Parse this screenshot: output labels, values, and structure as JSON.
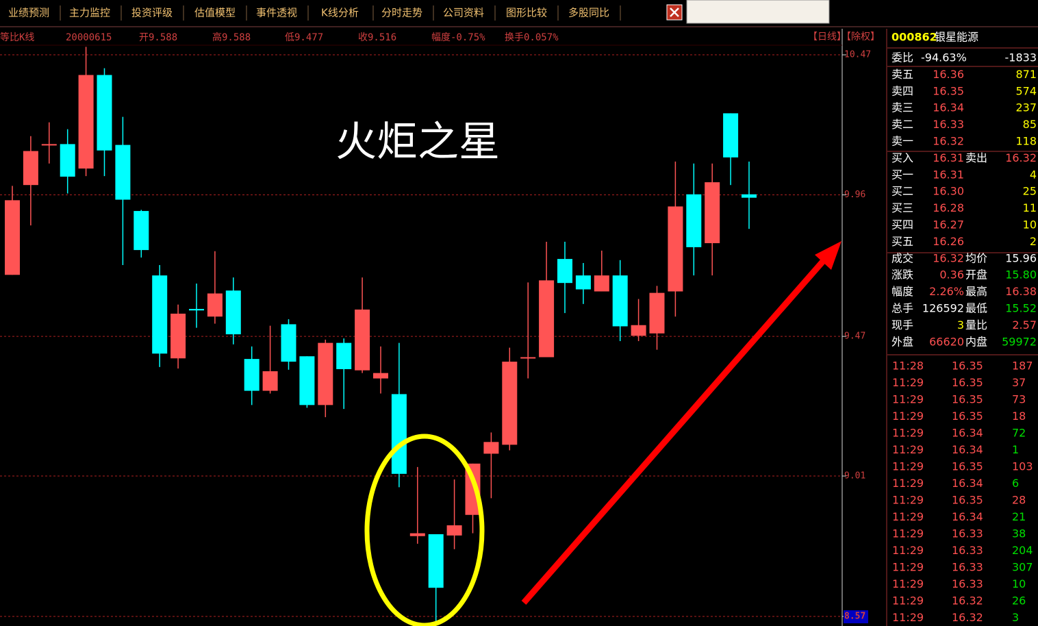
{
  "menu": [
    "业绩预测",
    "主力监控",
    "投资评级",
    "估值模型",
    "事件透视",
    "K线分析",
    "分时走势",
    "公司资料",
    "图形比较",
    "多股同比"
  ],
  "header": [
    "等比K线",
    "20000615",
    "开9.588",
    "高9.588",
    "低9.477",
    "收9.516",
    "幅度-0.75%",
    "换手0.057%"
  ],
  "header_right": "【日线】【除权】",
  "chart_data": {
    "type": "candlestick",
    "annotation": "火炬之星",
    "log_scale": true,
    "grid": true,
    "up_color": "#ff5454",
    "down_color": "#00ffff",
    "grid_color": "#b02020",
    "open": [
      9.68,
      9.995,
      10.137,
      10.142,
      10.054,
      10.395,
      10.139,
      9.903,
      9.678,
      9.396,
      9.563,
      9.537,
      9.626,
      9.394,
      9.288,
      9.511,
      9.403,
      9.241,
      9.448,
      9.356,
      9.329,
      9.277,
      8.819,
      8.825,
      8.821,
      8.886,
      9.082,
      9.111,
      9.396,
      9.4,
      9.735,
      9.678,
      9.623,
      9.678,
      9.472,
      9.48,
      9.623,
      9.962,
      9.79,
      10.254,
      9.962
    ],
    "high": [
      9.992,
      10.171,
      10.221,
      10.196,
      10.5,
      10.42,
      10.241,
      9.907,
      9.714,
      9.578,
      9.65,
      9.762,
      9.671,
      9.436,
      9.506,
      9.528,
      9.403,
      9.459,
      9.463,
      9.671,
      9.436,
      9.448,
      9.039,
      8.825,
      8.999,
      9.05,
      9.151,
      9.432,
      9.654,
      9.795,
      9.795,
      9.721,
      9.764,
      9.731,
      9.597,
      9.642,
      10.079,
      10.072,
      10.072,
      10.254,
      10.079
    ],
    "low": [
      9.68,
      9.852,
      10.072,
      9.965,
      10.027,
      10.027,
      9.714,
      9.74,
      9.367,
      9.362,
      9.499,
      9.513,
      9.443,
      9.241,
      9.279,
      9.358,
      9.232,
      9.201,
      9.228,
      9.347,
      9.279,
      8.974,
      8.795,
      8.544,
      8.778,
      8.828,
      8.939,
      9.093,
      9.329,
      9.4,
      9.549,
      9.58,
      9.623,
      9.454,
      9.454,
      9.425,
      9.537,
      9.678,
      9.678,
      9.995,
      9.84
    ],
    "close": [
      9.941,
      10.117,
      10.142,
      10.025,
      10.395,
      10.119,
      9.943,
      9.766,
      9.412,
      9.547,
      9.558,
      9.616,
      9.477,
      9.288,
      9.353,
      9.385,
      9.241,
      9.448,
      9.36,
      9.561,
      9.347,
      9.017,
      8.828,
      8.658,
      8.853,
      9.05,
      9.12,
      9.385,
      9.4,
      9.661,
      9.652,
      9.63,
      9.678,
      9.504,
      9.508,
      9.618,
      9.919,
      9.776,
      10.005,
      10.094,
      9.95
    ],
    "ylim": [
      8.545,
      10.506
    ],
    "yticks": [
      10.47,
      9.96,
      9.47,
      9.01,
      8.57
    ]
  },
  "quote": {
    "code": "000862",
    "name": "银星能源",
    "rows": [
      {
        "cells": [
          "委比",
          "-94.63%",
          "-1833"
        ],
        "colors": [
          "#ffffff",
          "#ffffff",
          "#ffffff"
        ]
      },
      {
        "cells": [
          "卖五",
          "16.36",
          "871"
        ],
        "colors": [
          "#ffffff",
          "#ff5050",
          "#ffff00"
        ]
      },
      {
        "cells": [
          "卖四",
          "16.35",
          "574"
        ],
        "colors": [
          "#ffffff",
          "#ff5050",
          "#ffff00"
        ]
      },
      {
        "cells": [
          "卖三",
          "16.34",
          "237"
        ],
        "colors": [
          "#ffffff",
          "#ff5050",
          "#ffff00"
        ]
      },
      {
        "cells": [
          "卖二",
          "16.33",
          "85"
        ],
        "colors": [
          "#ffffff",
          "#ff5050",
          "#ffff00"
        ]
      },
      {
        "cells": [
          "卖一",
          "16.32",
          "118"
        ],
        "colors": [
          "#ffffff",
          "#ff5050",
          "#ffff00"
        ]
      },
      {
        "cells": [
          "买入",
          "16.31",
          "卖出",
          "16.32"
        ],
        "colors": [
          "#ffffff",
          "#ff5050",
          "#ffffff",
          "#ff5050"
        ]
      },
      {
        "cells": [
          "买一",
          "16.31",
          "4"
        ],
        "colors": [
          "#ffffff",
          "#ff5050",
          "#ffff00"
        ]
      },
      {
        "cells": [
          "买二",
          "16.30",
          "25"
        ],
        "colors": [
          "#ffffff",
          "#ff5050",
          "#ffff00"
        ]
      },
      {
        "cells": [
          "买三",
          "16.28",
          "11"
        ],
        "colors": [
          "#ffffff",
          "#ff5050",
          "#ffff00"
        ]
      },
      {
        "cells": [
          "买四",
          "16.27",
          "10"
        ],
        "colors": [
          "#ffffff",
          "#ff5050",
          "#ffff00"
        ]
      },
      {
        "cells": [
          "买五",
          "16.26",
          "2"
        ],
        "colors": [
          "#ffffff",
          "#ff5050",
          "#ffff00"
        ]
      },
      {
        "cells": [
          "成交",
          "16.32",
          "均价",
          "15.96"
        ],
        "colors": [
          "#ffffff",
          "#ff5050",
          "#ffffff",
          "#ffffff"
        ]
      },
      {
        "cells": [
          "涨跌",
          "0.36",
          "开盘",
          "15.80"
        ],
        "colors": [
          "#ffffff",
          "#ff5050",
          "#ffffff",
          "#00e000"
        ]
      },
      {
        "cells": [
          "幅度",
          "2.26%",
          "最高",
          "16.38"
        ],
        "colors": [
          "#ffffff",
          "#ff5050",
          "#ffffff",
          "#ff5050"
        ]
      },
      {
        "cells": [
          "总手",
          "126592",
          "最低",
          "15.52"
        ],
        "colors": [
          "#ffffff",
          "#ffffff",
          "#ffffff",
          "#00e000"
        ]
      },
      {
        "cells": [
          "现手",
          "3",
          "量比",
          "2.57"
        ],
        "colors": [
          "#ffffff",
          "#ffff00",
          "#ffffff",
          "#ff5050"
        ]
      },
      {
        "cells": [
          "外盘",
          "66620",
          "内盘",
          "59972"
        ],
        "colors": [
          "#ffffff",
          "#ff5050",
          "#ffffff",
          "#00e000"
        ]
      }
    ],
    "trades": [
      {
        "cells": [
          "11:28",
          "16.35",
          "187"
        ],
        "color": "#ff5050"
      },
      {
        "cells": [
          "11:29",
          "16.35",
          "37"
        ],
        "color": "#ff5050"
      },
      {
        "cells": [
          "11:29",
          "16.35",
          "73"
        ],
        "color": "#ff5050"
      },
      {
        "cells": [
          "11:29",
          "16.35",
          "18"
        ],
        "color": "#ff5050"
      },
      {
        "cells": [
          "11:29",
          "16.34",
          "72"
        ],
        "color": "#00e000"
      },
      {
        "cells": [
          "11:29",
          "16.34",
          "1"
        ],
        "color": "#00e000"
      },
      {
        "cells": [
          "11:29",
          "16.35",
          "103"
        ],
        "color": "#ff5050"
      },
      {
        "cells": [
          "11:29",
          "16.34",
          "6"
        ],
        "color": "#00e000"
      },
      {
        "cells": [
          "11:29",
          "16.35",
          "28"
        ],
        "color": "#ff5050"
      },
      {
        "cells": [
          "11:29",
          "16.34",
          "21"
        ],
        "color": "#00e000"
      },
      {
        "cells": [
          "11:29",
          "16.33",
          "38"
        ],
        "color": "#00e000"
      },
      {
        "cells": [
          "11:29",
          "16.33",
          "204"
        ],
        "color": "#00e000"
      },
      {
        "cells": [
          "11:29",
          "16.33",
          "307"
        ],
        "color": "#00e000"
      },
      {
        "cells": [
          "11:29",
          "16.33",
          "10"
        ],
        "color": "#00e000"
      },
      {
        "cells": [
          "11:29",
          "16.32",
          "26"
        ],
        "color": "#00e000"
      },
      {
        "cells": [
          "11:29",
          "16.32",
          "3"
        ],
        "color": "#00e000"
      }
    ]
  }
}
